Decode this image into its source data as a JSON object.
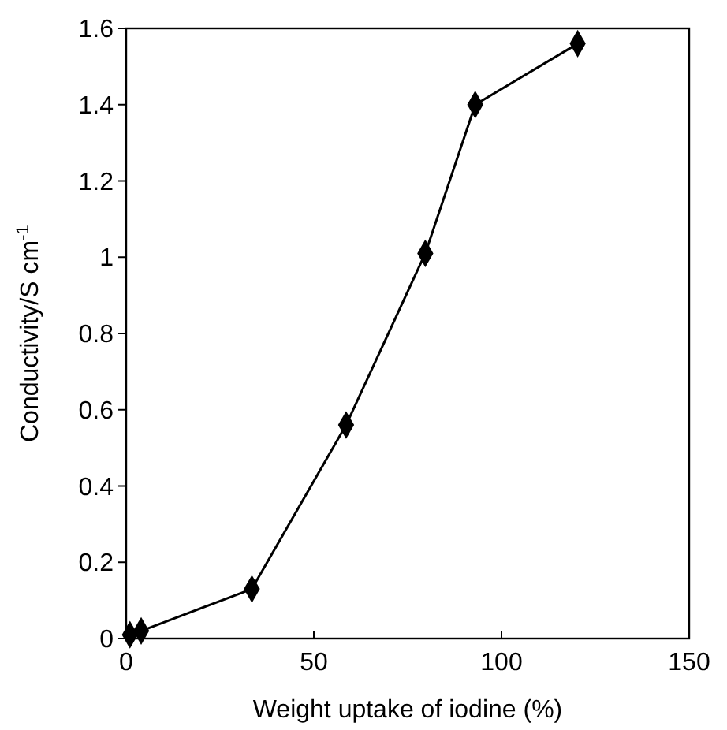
{
  "chart_data": {
    "type": "line",
    "xlabel": "Weight uptake of iodine (%)",
    "ylabel": "Conductivity/S cm$^{-1}$",
    "x": [
      1,
      4,
      33.5,
      58.6,
      79.7,
      93,
      120.3
    ],
    "series": [
      {
        "color": "#000000",
        "values": [
          0.01,
          0.02,
          0.13,
          0.56,
          1.01,
          1.4,
          1.56
        ]
      }
    ],
    "xlim": [
      0,
      150
    ],
    "xticks": [
      0,
      50,
      100,
      150
    ],
    "ylim": [
      0,
      1.6
    ],
    "yticks": [
      0,
      {
        "value": 0.2,
        "label": "0.2"
      },
      {
        "value": 0.4,
        "label": "0.4"
      },
      {
        "value": 0.6,
        "label": "0.6"
      },
      {
        "value": 0.8,
        "label": "0.8"
      },
      1,
      {
        "value": 1.2,
        "label": "1.2"
      },
      {
        "value": 1.4,
        "label": "1.4"
      },
      {
        "value": 1.6,
        "label": "1.6"
      }
    ],
    "marker": "diamond",
    "line_style": "solid",
    "grid": false
  }
}
